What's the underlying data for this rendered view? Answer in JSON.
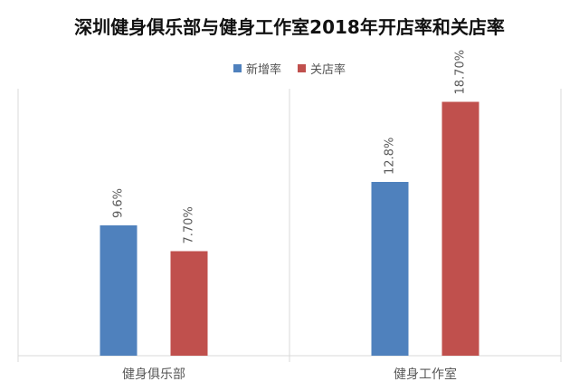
{
  "chart_data": {
    "type": "bar",
    "title": "深圳健身俱乐部与健身工作室2018年开店率和关店率",
    "categories": [
      "健身俱乐部",
      "健身工作室"
    ],
    "series": [
      {
        "name": "新增率",
        "values": [
          9.6,
          12.8
        ],
        "labels": [
          "9.6%",
          "12.8%"
        ],
        "color": "#4f81bd"
      },
      {
        "name": "关店率",
        "values": [
          7.7,
          18.7
        ],
        "labels": [
          "7.70%",
          "18.70%"
        ],
        "color": "#c0504d"
      }
    ],
    "ylim": [
      0,
      20
    ],
    "xlabel": "",
    "ylabel": "",
    "grid": false,
    "legend_position": "top"
  }
}
